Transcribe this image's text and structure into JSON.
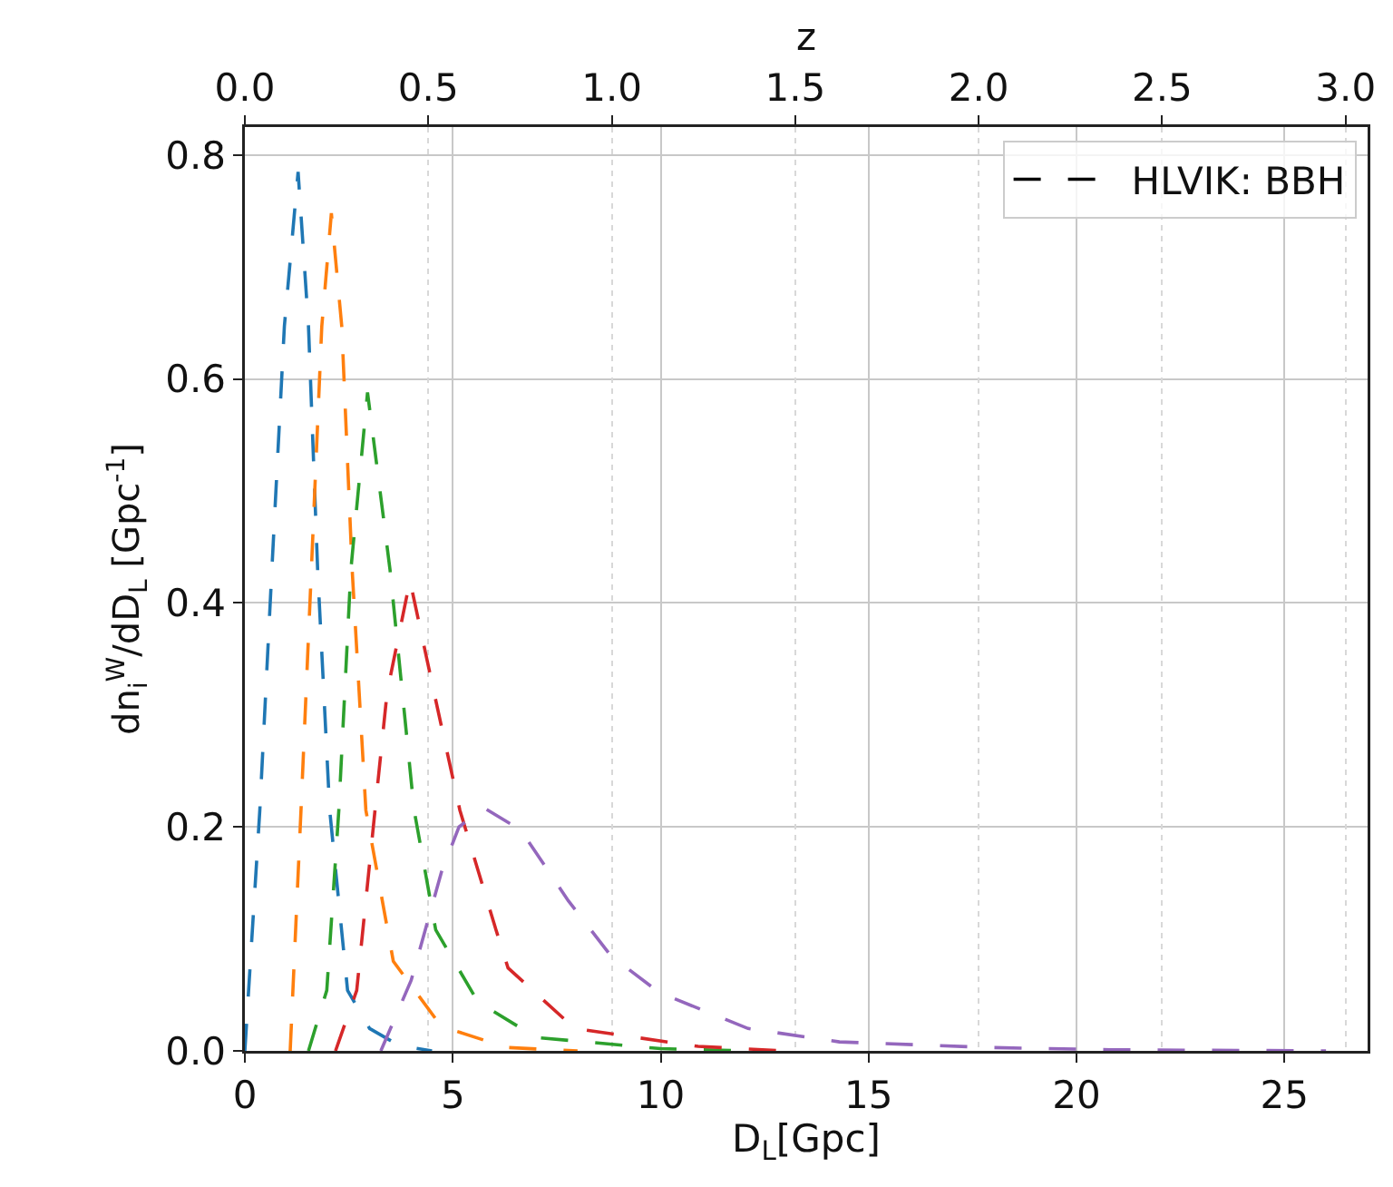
{
  "chart_data": {
    "type": "line",
    "xlabel": "D$_{L}$[Gpc]",
    "ylabel": "dn$_{i}$$^{W}$/dD$_{L}$ [Gpc$^{-1}$]",
    "x2label": "z",
    "xlim": [
      0,
      27
    ],
    "xticks": [
      0,
      5,
      10,
      15,
      20,
      25
    ],
    "ylim": [
      0,
      0.825
    ],
    "yticks": [
      {
        "value": 0,
        "label": "0.0"
      },
      0.2,
      0.4,
      0.6,
      0.8
    ],
    "x2lim": [
      0,
      3.06
    ],
    "x2ticks": [
      {
        "value": 0,
        "label": "0.0"
      },
      {
        "value": 0.5,
        "label": "0.5"
      },
      {
        "value": 1,
        "label": "1.0"
      },
      {
        "value": 1.5,
        "label": "1.5"
      },
      {
        "value": 2,
        "label": "2.0"
      },
      {
        "value": 2.5,
        "label": "2.5"
      },
      {
        "value": 3,
        "label": "3.0"
      }
    ],
    "grid": true,
    "legend": "top right",
    "marker": "none",
    "line_style": "dashed",
    "series": [
      {
        "color": "#1f77b4",
        "x": [
          0,
          0.36,
          0.65,
          0.95,
          1.28,
          1.53,
          1.75,
          2.04,
          2.47,
          3.0,
          3.7,
          4.5
        ],
        "values": [
          0,
          0.215,
          0.43,
          0.647,
          0.785,
          0.647,
          0.43,
          0.215,
          0.054,
          0.02,
          0.005,
          0
        ]
      },
      {
        "color": "#ff7f0e",
        "x": [
          1.09,
          1.35,
          1.6,
          1.85,
          2.08,
          2.33,
          2.58,
          2.91,
          3.57,
          4.72,
          6.3,
          8.0
        ],
        "values": [
          0,
          0.215,
          0.43,
          0.647,
          0.748,
          0.647,
          0.43,
          0.215,
          0.08,
          0.022,
          0.003,
          0
        ]
      },
      {
        "color": "#2ca02c",
        "x": [
          1.53,
          1.97,
          2.26,
          2.55,
          2.95,
          3.49,
          4.07,
          4.59,
          5.6,
          7.0,
          10.0,
          12.0
        ],
        "values": [
          0,
          0.054,
          0.215,
          0.43,
          0.588,
          0.43,
          0.215,
          0.108,
          0.044,
          0.012,
          0.002,
          0
        ]
      },
      {
        "color": "#d62728",
        "x": [
          2.18,
          2.69,
          3.13,
          3.42,
          3.97,
          4.55,
          5.17,
          6.04,
          6.33,
          7.93,
          10.9,
          13.0
        ],
        "values": [
          0,
          0.054,
          0.215,
          0.32,
          0.42,
          0.32,
          0.215,
          0.108,
          0.074,
          0.02,
          0.004,
          0
        ]
      },
      {
        "color": "#9467bd",
        "x": [
          3.27,
          4.0,
          4.73,
          5.15,
          5.75,
          6.33,
          6.62,
          7.78,
          8.8,
          9.97,
          12.1,
          14.3,
          17.9,
          20.8,
          26.0
        ],
        "values": [
          0,
          0.063,
          0.16,
          0.2,
          0.217,
          0.204,
          0.198,
          0.134,
          0.085,
          0.052,
          0.02,
          0.008,
          0.003,
          0.001,
          0
        ]
      },
      {
        "name": "HLVIK: BBH",
        "color": "#000000",
        "values": [
          null
        ]
      }
    ]
  }
}
